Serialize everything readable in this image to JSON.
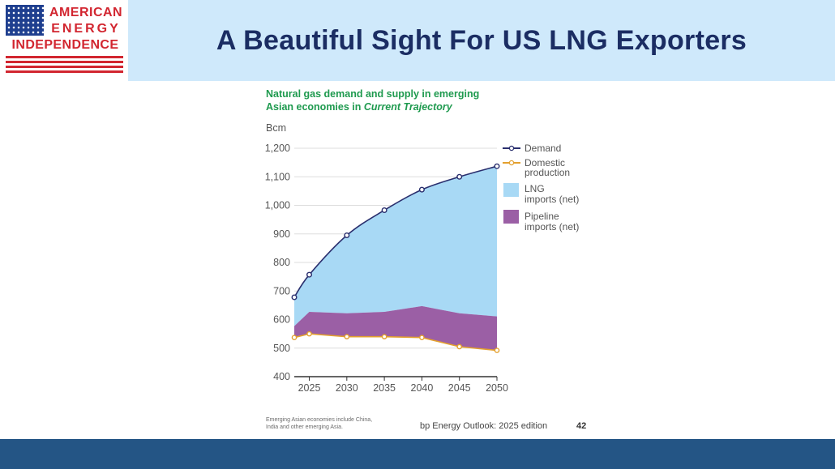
{
  "logo": {
    "line1": "AMERICAN",
    "line2": "ENERGY",
    "line3": "INDEPENDENCE",
    "colors": {
      "red": "#d22630",
      "blue": "#1f3f8f"
    }
  },
  "header": {
    "title": "A Beautiful Sight For US LNG Exporters"
  },
  "chart_data": {
    "type": "area",
    "title_line1": "Natural gas demand and supply in emerging",
    "title_line2_prefix": "Asian economies in ",
    "title_line2_italic": "Current Trajectory",
    "ylabel": "Bcm",
    "ylim": [
      400,
      1200
    ],
    "yticks": [
      "1,200",
      "1,100",
      "1,000",
      "900",
      "800",
      "700",
      "600",
      "500",
      "400"
    ],
    "ytick_values": [
      1200,
      1100,
      1000,
      900,
      800,
      700,
      600,
      500,
      400
    ],
    "xlim": [
      2023,
      2050
    ],
    "xticks": [
      2025,
      2030,
      2035,
      2040,
      2045,
      2050
    ],
    "x": [
      2023,
      2025,
      2030,
      2035,
      2040,
      2045,
      2050
    ],
    "series": [
      {
        "name": "Demand",
        "type": "line",
        "color": "#2a2f6e",
        "values": [
          678,
          757,
          895,
          983,
          1055,
          1100,
          1137
        ]
      },
      {
        "name": "Domestic production",
        "type": "line",
        "color": "#e3a02e",
        "values": [
          537,
          550,
          540,
          540,
          537,
          505,
          492
        ]
      },
      {
        "name": "LNG imports (net)",
        "type": "area",
        "color": "#a8d9f5"
      },
      {
        "name": "Pipeline imports (net)",
        "type": "area",
        "color": "#9b5fa5",
        "top_values": [
          577,
          627,
          622,
          627,
          647,
          622,
          611
        ]
      }
    ],
    "legend": {
      "position": "right",
      "demand": "Demand",
      "domestic_line1": "Domestic",
      "domestic_line2": "production",
      "lng_line1": "LNG",
      "lng_line2": "imports (net)",
      "pipeline_line1": "Pipeline",
      "pipeline_line2": "imports (net)"
    },
    "grid": true
  },
  "footer": {
    "footnote_line1": "Emerging Asian economies include China,",
    "footnote_line2": "India and other emerging Asia.",
    "source": "bp Energy Outlook: 2025 edition",
    "page_number": "42"
  }
}
